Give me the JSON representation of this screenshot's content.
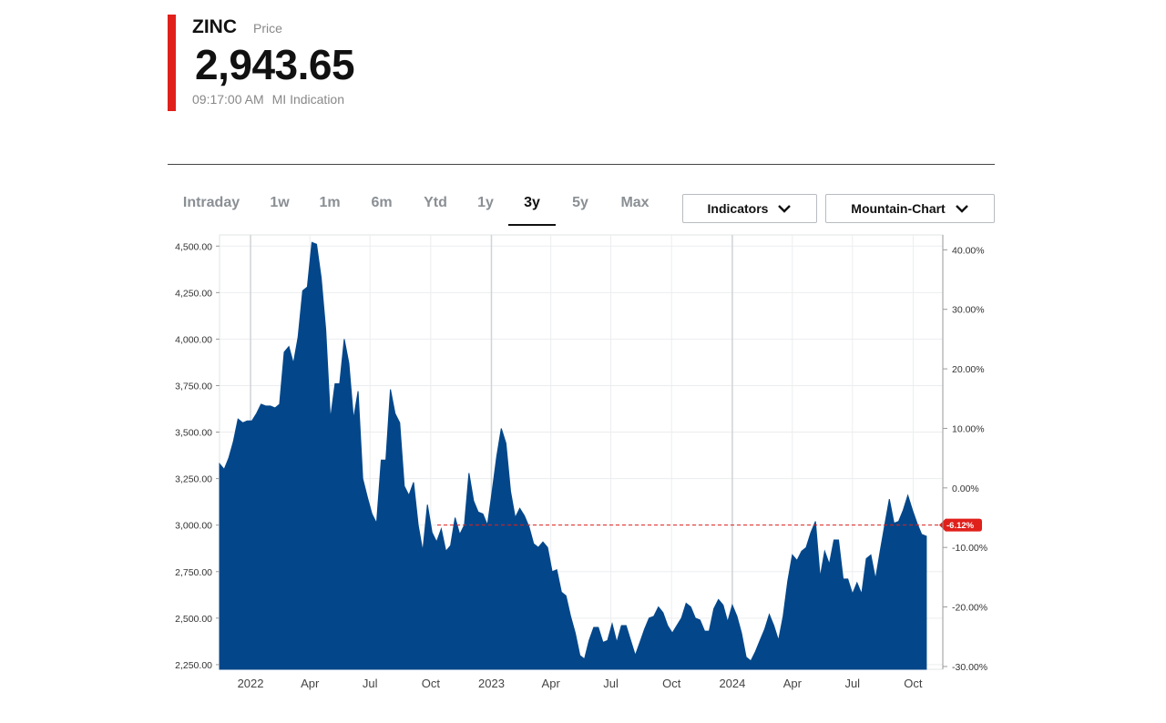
{
  "quote": {
    "symbol": "ZINC",
    "sublabel": "Price",
    "price": "2,943.65",
    "time": "09:17:00 AM",
    "source": "MI Indication",
    "accent_color": "#e0201b"
  },
  "range_tabs": [
    {
      "label": "Intraday",
      "active": false
    },
    {
      "label": "1w",
      "active": false
    },
    {
      "label": "1m",
      "active": false
    },
    {
      "label": "6m",
      "active": false
    },
    {
      "label": "Ytd",
      "active": false
    },
    {
      "label": "1y",
      "active": false
    },
    {
      "label": "3y",
      "active": true
    },
    {
      "label": "5y",
      "active": false
    },
    {
      "label": "Max",
      "active": false
    }
  ],
  "controls": {
    "indicators_label": "Indicators",
    "chart_type_label": "Mountain-Chart",
    "chevron_icon": "chevron-down-icon"
  },
  "chart_data": {
    "type": "area",
    "title": "",
    "xlabel": "",
    "ylabel": "",
    "fill_color": "#03478a",
    "reference_line_color": "#e0201b",
    "reference_price": 3000,
    "ylim": [
      2225,
      4560
    ],
    "y_ticks": [
      "4,500.00",
      "4,250.00",
      "4,000.00",
      "3,750.00",
      "3,500.00",
      "3,250.00",
      "3,000.00",
      "2,750.00",
      "2,500.00",
      "2,250.00"
    ],
    "y_tick_values": [
      4500,
      4250,
      4000,
      3750,
      3500,
      3250,
      3000,
      2750,
      2500,
      2250
    ],
    "y2_ticks": [
      "40.00%",
      "30.00%",
      "20.00%",
      "10.00%",
      "0.00%",
      "-10.00%",
      "-20.00%",
      "-30.00%"
    ],
    "y2_tick_values": [
      40,
      30,
      20,
      10,
      0,
      -10,
      -20,
      -30
    ],
    "y2_base_price": 3200,
    "change_badge": "-6.12%",
    "x_ticks": [
      "2022",
      "Apr",
      "Jul",
      "Oct",
      "2023",
      "Apr",
      "Jul",
      "Oct",
      "2024",
      "Apr",
      "Jul",
      "Oct"
    ],
    "x_tick_dates": [
      "2022-01-01",
      "2022-04-01",
      "2022-07-01",
      "2022-10-01",
      "2023-01-01",
      "2023-04-01",
      "2023-07-01",
      "2023-10-01",
      "2024-01-01",
      "2024-04-01",
      "2024-07-01",
      "2024-10-01"
    ],
    "x_range": [
      "2021-11-15",
      "2024-11-15"
    ],
    "grid": true,
    "series": [
      {
        "points": [
          [
            "2021-11-15",
            3330
          ],
          [
            "2021-11-22",
            3300
          ],
          [
            "2021-11-29",
            3360
          ],
          [
            "2021-12-06",
            3450
          ],
          [
            "2021-12-13",
            3570
          ],
          [
            "2021-12-20",
            3550
          ],
          [
            "2021-12-27",
            3560
          ],
          [
            "2022-01-03",
            3560
          ],
          [
            "2022-01-10",
            3600
          ],
          [
            "2022-01-17",
            3650
          ],
          [
            "2022-01-24",
            3640
          ],
          [
            "2022-01-31",
            3640
          ],
          [
            "2022-02-07",
            3630
          ],
          [
            "2022-02-14",
            3650
          ],
          [
            "2022-02-21",
            3930
          ],
          [
            "2022-02-28",
            3960
          ],
          [
            "2022-03-07",
            3870
          ],
          [
            "2022-03-14",
            4010
          ],
          [
            "2022-03-21",
            4260
          ],
          [
            "2022-03-28",
            4280
          ],
          [
            "2022-04-04",
            4520
          ],
          [
            "2022-04-11",
            4510
          ],
          [
            "2022-04-18",
            4330
          ],
          [
            "2022-04-25",
            4050
          ],
          [
            "2022-05-02",
            3570
          ],
          [
            "2022-05-09",
            3760
          ],
          [
            "2022-05-16",
            3760
          ],
          [
            "2022-05-23",
            4000
          ],
          [
            "2022-05-30",
            3870
          ],
          [
            "2022-06-06",
            3570
          ],
          [
            "2022-06-13",
            3720
          ],
          [
            "2022-06-20",
            3250
          ],
          [
            "2022-06-27",
            3150
          ],
          [
            "2022-07-04",
            3060
          ],
          [
            "2022-07-11",
            3010
          ],
          [
            "2022-07-18",
            3350
          ],
          [
            "2022-07-25",
            3350
          ],
          [
            "2022-08-01",
            3730
          ],
          [
            "2022-08-08",
            3600
          ],
          [
            "2022-08-15",
            3550
          ],
          [
            "2022-08-22",
            3210
          ],
          [
            "2022-08-29",
            3160
          ],
          [
            "2022-09-05",
            3230
          ],
          [
            "2022-09-12",
            3000
          ],
          [
            "2022-09-19",
            2860
          ],
          [
            "2022-09-26",
            3110
          ],
          [
            "2022-10-03",
            2960
          ],
          [
            "2022-10-10",
            2910
          ],
          [
            "2022-10-17",
            2980
          ],
          [
            "2022-10-24",
            2860
          ],
          [
            "2022-10-31",
            2890
          ],
          [
            "2022-11-07",
            3040
          ],
          [
            "2022-11-14",
            2950
          ],
          [
            "2022-11-21",
            3000
          ],
          [
            "2022-11-28",
            3280
          ],
          [
            "2022-12-05",
            3130
          ],
          [
            "2022-12-12",
            3070
          ],
          [
            "2022-12-19",
            3060
          ],
          [
            "2022-12-26",
            3000
          ],
          [
            "2023-01-02",
            3180
          ],
          [
            "2023-01-09",
            3370
          ],
          [
            "2023-01-16",
            3520
          ],
          [
            "2023-01-23",
            3440
          ],
          [
            "2023-01-30",
            3180
          ],
          [
            "2023-02-06",
            3040
          ],
          [
            "2023-02-13",
            3090
          ],
          [
            "2023-02-20",
            3050
          ],
          [
            "2023-02-27",
            2990
          ],
          [
            "2023-03-06",
            2900
          ],
          [
            "2023-03-13",
            2880
          ],
          [
            "2023-03-20",
            2910
          ],
          [
            "2023-03-27",
            2880
          ],
          [
            "2023-04-03",
            2750
          ],
          [
            "2023-04-10",
            2760
          ],
          [
            "2023-04-17",
            2640
          ],
          [
            "2023-04-24",
            2620
          ],
          [
            "2023-05-01",
            2510
          ],
          [
            "2023-05-08",
            2420
          ],
          [
            "2023-05-15",
            2300
          ],
          [
            "2023-05-22",
            2280
          ],
          [
            "2023-05-29",
            2380
          ],
          [
            "2023-06-05",
            2450
          ],
          [
            "2023-06-12",
            2450
          ],
          [
            "2023-06-19",
            2370
          ],
          [
            "2023-06-26",
            2380
          ],
          [
            "2023-07-03",
            2470
          ],
          [
            "2023-07-10",
            2370
          ],
          [
            "2023-07-17",
            2460
          ],
          [
            "2023-07-24",
            2460
          ],
          [
            "2023-07-31",
            2380
          ],
          [
            "2023-08-07",
            2300
          ],
          [
            "2023-08-14",
            2370
          ],
          [
            "2023-08-21",
            2440
          ],
          [
            "2023-08-28",
            2500
          ],
          [
            "2023-09-04",
            2510
          ],
          [
            "2023-09-11",
            2560
          ],
          [
            "2023-09-18",
            2530
          ],
          [
            "2023-09-25",
            2460
          ],
          [
            "2023-10-02",
            2420
          ],
          [
            "2023-10-09",
            2460
          ],
          [
            "2023-10-16",
            2500
          ],
          [
            "2023-10-23",
            2580
          ],
          [
            "2023-10-30",
            2560
          ],
          [
            "2023-11-06",
            2500
          ],
          [
            "2023-11-13",
            2490
          ],
          [
            "2023-11-20",
            2430
          ],
          [
            "2023-11-27",
            2430
          ],
          [
            "2023-12-04",
            2550
          ],
          [
            "2023-12-11",
            2600
          ],
          [
            "2023-12-18",
            2570
          ],
          [
            "2023-12-25",
            2480
          ],
          [
            "2024-01-01",
            2570
          ],
          [
            "2024-01-08",
            2510
          ],
          [
            "2024-01-15",
            2420
          ],
          [
            "2024-01-22",
            2290
          ],
          [
            "2024-01-29",
            2270
          ],
          [
            "2024-02-05",
            2320
          ],
          [
            "2024-02-12",
            2380
          ],
          [
            "2024-02-19",
            2440
          ],
          [
            "2024-02-26",
            2520
          ],
          [
            "2024-03-04",
            2460
          ],
          [
            "2024-03-11",
            2380
          ],
          [
            "2024-03-18",
            2510
          ],
          [
            "2024-03-25",
            2700
          ],
          [
            "2024-04-01",
            2840
          ],
          [
            "2024-04-08",
            2810
          ],
          [
            "2024-04-15",
            2860
          ],
          [
            "2024-04-22",
            2880
          ],
          [
            "2024-04-29",
            2960
          ],
          [
            "2024-05-06",
            3020
          ],
          [
            "2024-05-13",
            2720
          ],
          [
            "2024-05-20",
            2860
          ],
          [
            "2024-05-27",
            2790
          ],
          [
            "2024-06-03",
            2920
          ],
          [
            "2024-06-10",
            2920
          ],
          [
            "2024-06-17",
            2710
          ],
          [
            "2024-06-24",
            2710
          ],
          [
            "2024-07-01",
            2630
          ],
          [
            "2024-07-08",
            2690
          ],
          [
            "2024-07-15",
            2630
          ],
          [
            "2024-07-22",
            2820
          ],
          [
            "2024-07-29",
            2840
          ],
          [
            "2024-08-05",
            2710
          ],
          [
            "2024-08-12",
            2860
          ],
          [
            "2024-08-19",
            3000
          ],
          [
            "2024-08-26",
            3140
          ],
          [
            "2024-09-02",
            3010
          ],
          [
            "2024-09-09",
            3020
          ],
          [
            "2024-09-16",
            3080
          ],
          [
            "2024-09-23",
            3160
          ],
          [
            "2024-09-30",
            3080
          ],
          [
            "2024-10-07",
            3010
          ],
          [
            "2024-10-14",
            2950
          ],
          [
            "2024-10-21",
            2940
          ]
        ]
      }
    ]
  }
}
